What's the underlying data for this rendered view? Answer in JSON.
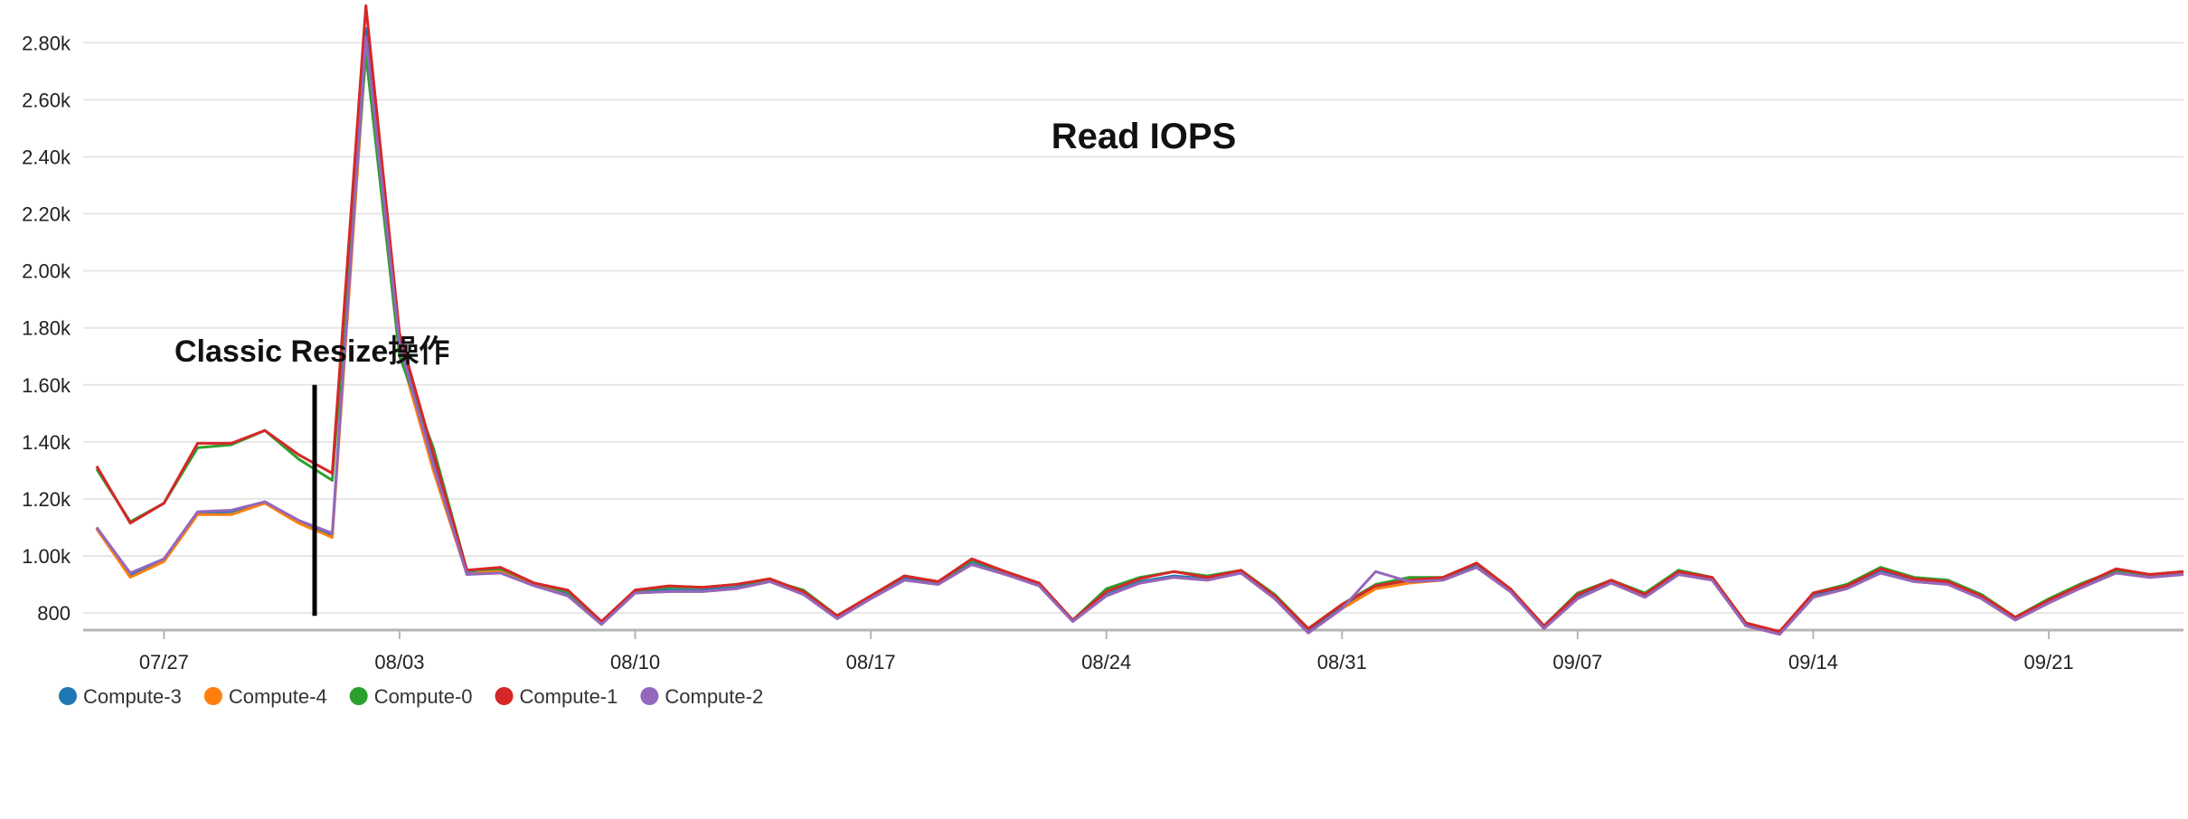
{
  "chart_data": {
    "type": "line",
    "title": "Read IOPS",
    "annotation": "Classic Resize操作",
    "xlabel": "",
    "ylabel": "",
    "ylim": [
      740,
      2950
    ],
    "yticks": [
      800,
      1000,
      1200,
      1400,
      1600,
      1800,
      2000,
      2200,
      2400,
      2600,
      2800
    ],
    "ytick_labels": [
      "800",
      "1.00k",
      "1.20k",
      "1.40k",
      "1.60k",
      "1.80k",
      "2.00k",
      "2.20k",
      "2.40k",
      "2.60k",
      "2.80k"
    ],
    "x_dates": [
      "07/25",
      "07/26",
      "07/27",
      "07/28",
      "07/29",
      "07/30",
      "07/31",
      "08/01",
      "08/02",
      "08/03",
      "08/04",
      "08/05",
      "08/06",
      "08/07",
      "08/08",
      "08/09",
      "08/10",
      "08/11",
      "08/12",
      "08/13",
      "08/14",
      "08/15",
      "08/16",
      "08/17",
      "08/18",
      "08/19",
      "08/20",
      "08/21",
      "08/22",
      "08/23",
      "08/24",
      "08/25",
      "08/26",
      "08/27",
      "08/28",
      "08/29",
      "08/30",
      "08/31",
      "09/01",
      "09/02",
      "09/03",
      "09/04",
      "09/05",
      "09/06",
      "09/07",
      "09/08",
      "09/09",
      "09/10",
      "09/11",
      "09/12",
      "09/13",
      "09/14",
      "09/15",
      "09/16",
      "09/17",
      "09/18",
      "09/19",
      "09/20",
      "09/21",
      "09/22",
      "09/23",
      "09/24",
      "09/25"
    ],
    "xticks": [
      "07/27",
      "08/03",
      "08/10",
      "08/17",
      "08/24",
      "08/31",
      "09/07",
      "09/14",
      "09/21"
    ],
    "xlim": [
      "07/25",
      "09/25"
    ],
    "grid": "horizontal",
    "legend_position": "bottom-left",
    "series": [
      {
        "name": "Compute-3",
        "color": "#1f77b4",
        "values": [
          1100,
          930,
          985,
          1150,
          1155,
          1190,
          1120,
          1070,
          2850,
          1750,
          1330,
          940,
          945,
          900,
          865,
          765,
          875,
          880,
          880,
          890,
          915,
          870,
          785,
          855,
          920,
          905,
          975,
          940,
          900,
          775,
          865,
          910,
          930,
          920,
          945,
          855,
          735,
          820,
          890,
          910,
          920,
          965,
          880,
          750,
          855,
          910,
          860,
          940,
          920,
          760,
          730,
          860,
          890,
          945,
          915,
          905,
          855,
          780,
          840,
          895,
          945,
          930,
          940
        ]
      },
      {
        "name": "Compute-4",
        "color": "#ff7f0e",
        "values": [
          1095,
          925,
          980,
          1145,
          1145,
          1185,
          1115,
          1065,
          2780,
          1720,
          1300,
          935,
          950,
          900,
          860,
          760,
          870,
          875,
          875,
          885,
          910,
          865,
          780,
          850,
          915,
          900,
          970,
          935,
          895,
          770,
          860,
          905,
          925,
          915,
          940,
          850,
          730,
          815,
          885,
          905,
          915,
          960,
          875,
          745,
          850,
          905,
          855,
          935,
          915,
          755,
          725,
          855,
          885,
          940,
          910,
          900,
          850,
          775,
          835,
          890,
          940,
          925,
          935
        ]
      },
      {
        "name": "Compute-0",
        "color": "#2ca02c",
        "values": [
          1305,
          1120,
          1185,
          1380,
          1390,
          1440,
          1340,
          1265,
          2760,
          1700,
          1380,
          950,
          955,
          905,
          875,
          770,
          880,
          890,
          890,
          900,
          915,
          880,
          790,
          860,
          930,
          910,
          985,
          945,
          905,
          775,
          885,
          925,
          945,
          930,
          950,
          865,
          745,
          830,
          900,
          925,
          925,
          975,
          885,
          755,
          870,
          915,
          870,
          950,
          925,
          765,
          730,
          870,
          900,
          960,
          925,
          915,
          865,
          785,
          850,
          905,
          950,
          935,
          945
        ]
      },
      {
        "name": "Compute-1",
        "color": "#d62728",
        "values": [
          1315,
          1115,
          1185,
          1395,
          1395,
          1440,
          1355,
          1290,
          2930,
          1780,
          1360,
          950,
          960,
          905,
          880,
          770,
          880,
          895,
          890,
          900,
          920,
          875,
          790,
          860,
          930,
          910,
          990,
          945,
          905,
          775,
          875,
          920,
          945,
          925,
          950,
          860,
          745,
          830,
          895,
          915,
          925,
          975,
          885,
          755,
          865,
          915,
          865,
          945,
          925,
          765,
          735,
          870,
          895,
          955,
          920,
          910,
          860,
          785,
          845,
          900,
          955,
          935,
          945
        ]
      },
      {
        "name": "Compute-2",
        "color": "#9467bd",
        "values": [
          1100,
          940,
          990,
          1155,
          1160,
          1190,
          1125,
          1080,
          2820,
          1740,
          1320,
          935,
          940,
          895,
          860,
          760,
          870,
          875,
          875,
          885,
          910,
          865,
          780,
          850,
          915,
          900,
          970,
          935,
          895,
          770,
          860,
          905,
          925,
          915,
          940,
          850,
          730,
          815,
          945,
          910,
          915,
          960,
          875,
          745,
          850,
          905,
          855,
          935,
          915,
          755,
          725,
          855,
          885,
          940,
          910,
          900,
          850,
          775,
          835,
          890,
          940,
          925,
          935
        ]
      }
    ]
  }
}
